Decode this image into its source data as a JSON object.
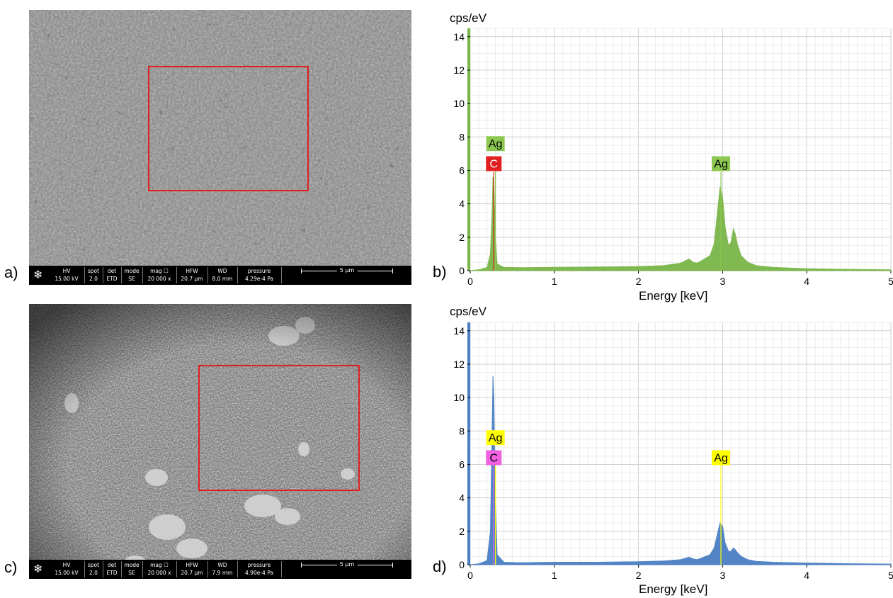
{
  "panels": {
    "a": {
      "letter": "a)",
      "databar": {
        "hv_key": "HV",
        "hv": "15.00 kV",
        "spot_key": "spot",
        "spot": "2.0",
        "det_key": "det",
        "det": "ETD",
        "mode_key": "mode",
        "mode": "SE",
        "mag_key": "mag ☐",
        "mag": "20 000 x",
        "hfw_key": "HFW",
        "hfw": "20.7 µm",
        "wd_key": "WD",
        "wd": "8.0 mm",
        "pressure_key": "pressure",
        "pressure": "4.29e-4 Pa",
        "scale": "5 µm"
      }
    },
    "c": {
      "letter": "c)",
      "databar": {
        "hv_key": "HV",
        "hv": "15.00 kV",
        "spot_key": "spot",
        "spot": "2.0",
        "det_key": "det",
        "det": "ETD",
        "mode_key": "mode",
        "mode": "SE",
        "mag_key": "mag ☐",
        "mag": "20 000 x",
        "hfw_key": "HFW",
        "hfw": "20.7 µm",
        "wd_key": "WD",
        "wd": "7.9 mm",
        "pressure_key": "pressure",
        "pressure": "4.90e-4 Pa",
        "scale": "5 µm"
      }
    },
    "b": {
      "letter": "b)"
    },
    "d": {
      "letter": "d)"
    }
  },
  "colors": {
    "roi": "#e02020",
    "spectrum_b": "#7ab648",
    "spectrum_d": "#4a7fc4",
    "label_ag_b": "#8cc850",
    "label_c_b": "#e02020",
    "label_ag_d": "#ffff00",
    "label_c_d": "#f060e0"
  },
  "chart_data": [
    {
      "type": "area",
      "panel": "b",
      "ylabel": "cps/eV",
      "xlabel": "Energy [keV]",
      "xlim": [
        0,
        5
      ],
      "ylim": [
        0,
        14.5
      ],
      "xticks": [
        "0",
        "1",
        "2",
        "3",
        "4",
        "5"
      ],
      "yticks": [
        "0",
        "2",
        "4",
        "6",
        "8",
        "10",
        "12",
        "14"
      ],
      "grid": true,
      "series": [
        {
          "x": [
            0.0,
            0.1,
            0.2,
            0.24,
            0.26,
            0.27,
            0.28,
            0.3,
            0.32,
            0.4,
            0.6,
            1.0,
            1.5,
            2.0,
            2.3,
            2.5,
            2.6,
            2.65,
            2.7,
            2.85,
            2.9,
            2.94,
            2.97,
            3.0,
            3.03,
            3.07,
            3.1,
            3.13,
            3.15,
            3.18,
            3.22,
            3.3,
            3.4,
            3.6,
            4.0,
            4.5,
            5.0
          ],
          "y": [
            0.0,
            0.05,
            0.2,
            1.0,
            3.5,
            5.6,
            5.4,
            2.0,
            0.4,
            0.2,
            0.18,
            0.2,
            0.22,
            0.25,
            0.3,
            0.45,
            0.7,
            0.5,
            0.45,
            0.9,
            1.6,
            3.6,
            5.0,
            4.4,
            2.6,
            1.5,
            1.7,
            2.5,
            2.2,
            1.5,
            0.9,
            0.5,
            0.3,
            0.2,
            0.12,
            0.08,
            0.05
          ]
        }
      ],
      "annotations": [
        {
          "label": "Ag",
          "x": 0.3,
          "y": 7.6,
          "line_top": 6.0
        },
        {
          "label": "C",
          "x": 0.28,
          "y": 6.4,
          "line_top": 5.9
        },
        {
          "label": "Ag",
          "x": 2.98,
          "y": 6.4,
          "line_top": 5.9
        }
      ]
    },
    {
      "type": "area",
      "panel": "d",
      "ylabel": "cps/eV",
      "xlabel": "Energy [keV]",
      "xlim": [
        0,
        5
      ],
      "ylim": [
        0,
        14.5
      ],
      "xticks": [
        "0",
        "1",
        "2",
        "3",
        "4",
        "5"
      ],
      "yticks": [
        "0",
        "2",
        "4",
        "6",
        "8",
        "10",
        "12",
        "14"
      ],
      "grid": true,
      "series": [
        {
          "x": [
            0.0,
            0.1,
            0.2,
            0.24,
            0.26,
            0.27,
            0.28,
            0.3,
            0.32,
            0.4,
            0.6,
            1.0,
            1.5,
            2.0,
            2.3,
            2.5,
            2.6,
            2.65,
            2.7,
            2.85,
            2.9,
            2.94,
            2.97,
            3.0,
            3.03,
            3.07,
            3.1,
            3.13,
            3.15,
            3.18,
            3.22,
            3.3,
            3.4,
            3.6,
            4.0,
            4.5,
            5.0
          ],
          "y": [
            0.0,
            0.05,
            0.25,
            2.0,
            8.0,
            11.3,
            10.0,
            4.0,
            0.6,
            0.15,
            0.12,
            0.15,
            0.15,
            0.18,
            0.22,
            0.3,
            0.45,
            0.35,
            0.3,
            0.6,
            1.0,
            1.9,
            2.5,
            2.3,
            1.3,
            0.8,
            0.8,
            1.0,
            0.9,
            0.7,
            0.5,
            0.3,
            0.2,
            0.15,
            0.1,
            0.06,
            0.04
          ]
        }
      ],
      "annotations": [
        {
          "label": "Ag",
          "x": 0.3,
          "y": 7.6,
          "line_top": 6.3
        },
        {
          "label": "C",
          "x": 0.28,
          "y": 6.4,
          "line_top": 6.1
        },
        {
          "label": "Ag",
          "x": 2.98,
          "y": 6.4,
          "line_top": 6.3
        }
      ]
    }
  ]
}
